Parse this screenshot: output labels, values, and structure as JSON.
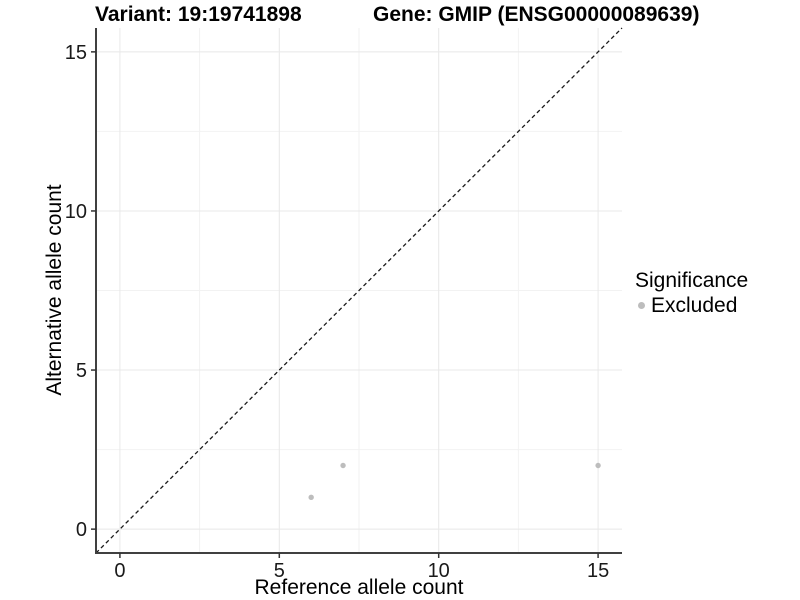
{
  "titles": {
    "variant": "Variant: 19:19741898",
    "gene": "Gene: GMIP (ENSG00000089639)"
  },
  "chart_data": {
    "type": "scatter",
    "xlabel": "Reference allele count",
    "ylabel": "Alternative allele count",
    "xlim": [
      -0.75,
      15.75
    ],
    "ylim": [
      -0.75,
      15.75
    ],
    "x_major_ticks": [
      0,
      5,
      10,
      15
    ],
    "y_major_ticks": [
      0,
      5,
      10,
      15
    ],
    "x_minor_ticks": [
      2.5,
      7.5,
      12.5
    ],
    "y_minor_ticks": [
      2.5,
      7.5,
      12.5
    ],
    "grid": true,
    "reference_line": {
      "style": "dashed",
      "from": [
        -0.75,
        -0.75
      ],
      "to": [
        15.75,
        15.75
      ],
      "color": "#1a1a1a"
    },
    "series": [
      {
        "name": "Excluded",
        "color": "#bdbdbd",
        "points": [
          [
            6,
            1
          ],
          [
            7,
            2
          ],
          [
            15,
            2
          ]
        ]
      }
    ],
    "legend": {
      "title": "Significance",
      "position": "right",
      "items": [
        {
          "label": "Excluded",
          "color": "#bdbdbd"
        }
      ]
    }
  },
  "colors": {
    "background": "#ffffff",
    "grid_major": "#e8e8e8",
    "grid_minor": "#f2f2f2",
    "axis_line": "#404040",
    "tick_mark": "#333333",
    "tick_label": "#1a1a1a",
    "point": "#bdbdbd"
  }
}
